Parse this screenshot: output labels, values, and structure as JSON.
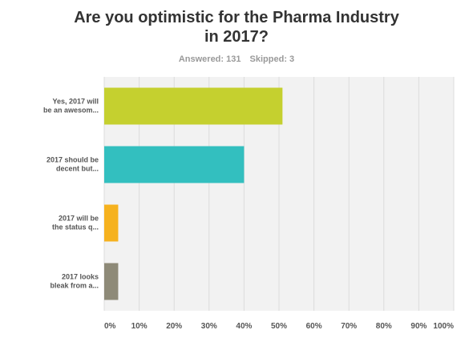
{
  "header": {
    "title": "Are you optimistic for the Pharma Industry\nin 2017?",
    "answered_label": "Answered: 131",
    "skipped_label": "Skipped: 3"
  },
  "chart_data": {
    "type": "bar",
    "orientation": "horizontal",
    "title": "Are you optimistic for the Pharma Industry in 2017?",
    "categories": [
      [
        "Yes, 2017 will",
        "be an awesom..."
      ],
      [
        "2017 should be",
        "decent but..."
      ],
      [
        "2017 will be",
        "the status q..."
      ],
      [
        "2017 looks",
        "bleak from a..."
      ]
    ],
    "values": [
      51,
      40,
      4,
      4
    ],
    "colors": [
      "#c5d02f",
      "#33bfbf",
      "#f6b21f",
      "#8e8a78"
    ],
    "xlim": [
      0,
      100
    ],
    "xticks": [
      "0%",
      "10%",
      "20%",
      "30%",
      "40%",
      "50%",
      "60%",
      "70%",
      "80%",
      "90%",
      "100%"
    ],
    "grid": true,
    "legend": "none"
  }
}
